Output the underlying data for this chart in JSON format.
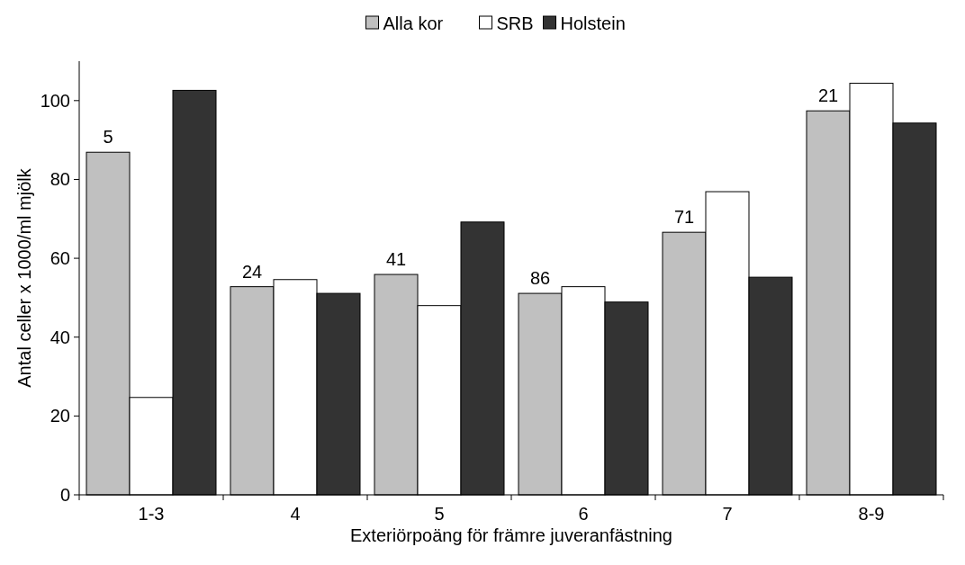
{
  "chart_data": {
    "type": "bar",
    "xlabel": "Exteriörpoäng för främre juveranfästning",
    "ylabel": "Antal celler x 1000/ml mjölk",
    "categories": [
      "1-3",
      "4",
      "5",
      "6",
      "7",
      "8-9"
    ],
    "series": [
      {
        "name": "Alla kor",
        "color": "#c0c0c0",
        "values": [
          86.9,
          52.8,
          55.9,
          51.1,
          66.6,
          97.4
        ]
      },
      {
        "name": "SRB",
        "color": "#ffffff",
        "values": [
          24.7,
          54.6,
          48.0,
          52.8,
          76.9,
          104.4
        ]
      },
      {
        "name": "Holstein",
        "color": "#333333",
        "values": [
          102.6,
          51.1,
          69.2,
          48.9,
          55.2,
          94.3
        ]
      }
    ],
    "ylim": [
      0,
      110
    ],
    "yticks": [
      0,
      20,
      40,
      60,
      80,
      100
    ],
    "grid": false,
    "legend": "top",
    "annotations": [
      "5",
      "24",
      "41",
      "86",
      "71",
      "21"
    ]
  }
}
